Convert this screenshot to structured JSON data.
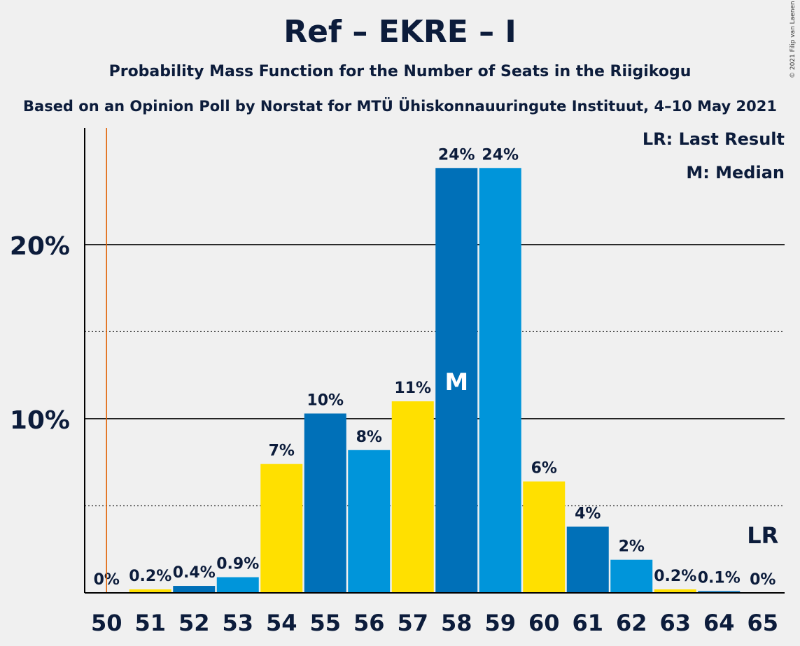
{
  "title": "Ref – EKRE – I",
  "subtitle": "Probability Mass Function for the Number of Seats in the Riigikogu",
  "subtitle2": "Based on an Opinion Poll by Norstat for MTÜ Ühiskonnauuringute Instituut, 4–10 May 2021",
  "copyright": "© 2021 Filip van Laenen",
  "legend": {
    "last_result": "LR: Last Result",
    "median": "M: Median"
  },
  "colors": {
    "yellow": "#ffe000",
    "dark_blue": "#0070b8",
    "light_blue": "#0095da",
    "last_result_line": "#e06000",
    "text": "#0c1c3b"
  },
  "chart_data": {
    "type": "bar",
    "categories": [
      "50",
      "51",
      "52",
      "53",
      "54",
      "55",
      "56",
      "57",
      "58",
      "59",
      "60",
      "61",
      "62",
      "63",
      "64",
      "65"
    ],
    "values": [
      0,
      0.2,
      0.4,
      0.9,
      7.4,
      10.3,
      8.2,
      11.0,
      24.4,
      24.4,
      6.4,
      3.8,
      1.9,
      0.2,
      0.1,
      0
    ],
    "labels": [
      "0%",
      "0.2%",
      "0.4%",
      "0.9%",
      "7%",
      "10%",
      "8%",
      "11%",
      "24%",
      "24%",
      "6%",
      "4%",
      "2%",
      "0.2%",
      "0.1%",
      "0%"
    ],
    "bar_colors": [
      "yellow",
      "yellow",
      "dark_blue",
      "light_blue",
      "yellow",
      "dark_blue",
      "light_blue",
      "yellow",
      "dark_blue",
      "light_blue",
      "yellow",
      "dark_blue",
      "light_blue",
      "yellow",
      "dark_blue",
      "light_blue"
    ],
    "ylim": [
      0,
      26.7
    ],
    "yticks": [
      {
        "value": 10,
        "label": "10%"
      },
      {
        "value": 20,
        "label": "20%"
      }
    ],
    "minor_gridlines": [
      5,
      15
    ],
    "median_seat": "58",
    "median_marker": "M",
    "last_result_line_at": 50.5,
    "last_result_marker": {
      "seat": "65",
      "text": "LR"
    }
  }
}
